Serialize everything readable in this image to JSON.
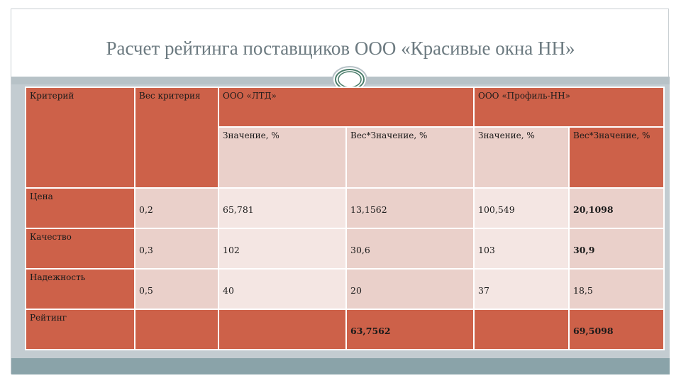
{
  "title": "Расчет рейтинга  поставщиков ООО «Красивые окна НН»",
  "header": {
    "criterion": "Критерий",
    "weight": "Вес критерия",
    "supplier1": "ООО «ЛТД»",
    "supplier2": "ООО «Профиль-НН»",
    "s1_value": "Значение, %",
    "s1_weighted": "Вес*Значение, %",
    "s2_value": "Значение, %",
    "s2_weighted": "Вес*Значение, %"
  },
  "rows": [
    {
      "name": "Цена",
      "weight": "0,2",
      "s1_value": "65,781",
      "s1_weighted": "13,1562",
      "s2_value": "100,549",
      "s2_weighted": "20,1098"
    },
    {
      "name": "Качество",
      "weight": "0,3",
      "s1_value": "102",
      "s1_weighted": "30,6",
      "s2_value": "103",
      "s2_weighted": "30,9"
    },
    {
      "name": "Надежность",
      "weight": "0,5",
      "s1_value": "40",
      "s1_weighted": "20",
      "s2_value": "37",
      "s2_weighted": "18,5"
    }
  ],
  "rating": {
    "name": "Рейтинг",
    "s1_total": "63,7562",
    "s2_total": "69,5098"
  },
  "colors": {
    "header": "#cd6149",
    "cell_light": "#ead0ca",
    "cell_lighter": "#f4e6e3",
    "accent_bar": "#b7c2c7"
  }
}
